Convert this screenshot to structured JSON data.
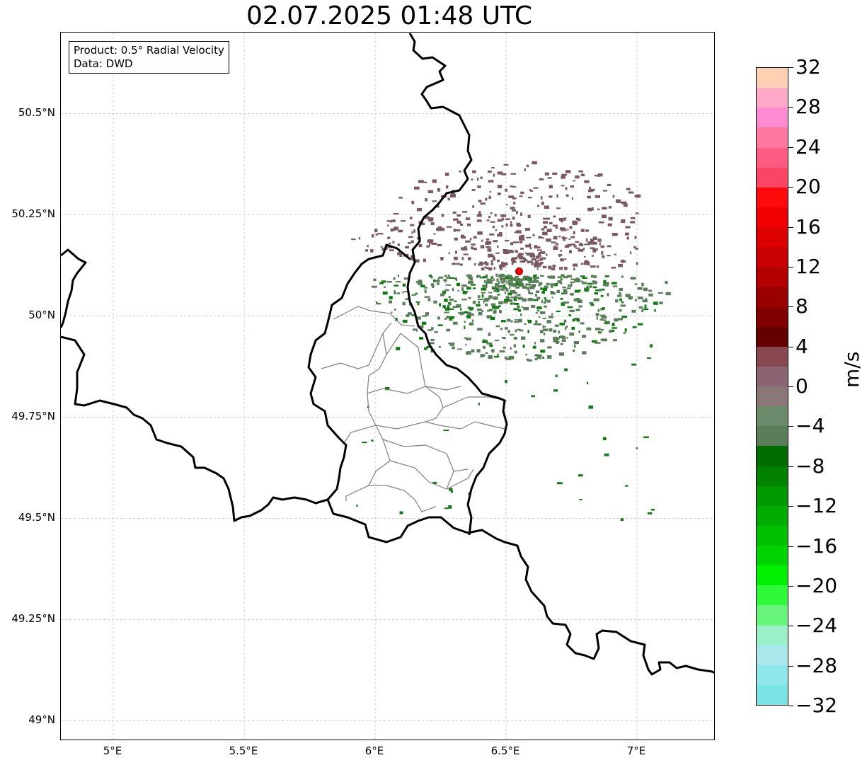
{
  "title": "02.07.2025 01:48 UTC",
  "info": {
    "product": "Product: 0.5° Radial Velocity",
    "source": "Data: DWD"
  },
  "map": {
    "lon_range": [
      4.8,
      7.3
    ],
    "lat_range": [
      48.95,
      50.7
    ],
    "lat_ticks": [
      {
        "value": 50.5,
        "label": "50.5°N"
      },
      {
        "value": 50.25,
        "label": "50.25°N"
      },
      {
        "value": 50.0,
        "label": "50°N"
      },
      {
        "value": 49.75,
        "label": "49.75°N"
      },
      {
        "value": 49.5,
        "label": "49.5°N"
      },
      {
        "value": 49.25,
        "label": "49.25°N"
      },
      {
        "value": 49.0,
        "label": "49°N"
      }
    ],
    "lon_ticks": [
      {
        "value": 5.0,
        "label": "5°E"
      },
      {
        "value": 5.5,
        "label": "5.5°E"
      },
      {
        "value": 6.0,
        "label": "6°E"
      },
      {
        "value": 6.5,
        "label": "6.5°E"
      },
      {
        "value": 7.0,
        "label": "7°E"
      }
    ],
    "radar_site": {
      "lon": 6.55,
      "lat": 50.11
    },
    "colors": {
      "border": "#000000",
      "admin_border": "#808080",
      "grid": "#b0b0b0",
      "radar_marker": "#ff0000",
      "outbound_echo": "#7a5a62",
      "inbound_echo": "#5a7e5a",
      "inbound_strong": "#137a13"
    }
  },
  "colorbar": {
    "unit": "m/s",
    "min": -32,
    "max": 32,
    "ticks": [
      {
        "value": 32,
        "label": "32"
      },
      {
        "value": 28,
        "label": "28"
      },
      {
        "value": 24,
        "label": "24"
      },
      {
        "value": 20,
        "label": "20"
      },
      {
        "value": 16,
        "label": "16"
      },
      {
        "value": 12,
        "label": "12"
      },
      {
        "value": 8,
        "label": "8"
      },
      {
        "value": 4,
        "label": "4"
      },
      {
        "value": 0,
        "label": "0"
      },
      {
        "value": -4,
        "label": "−4"
      },
      {
        "value": -8,
        "label": "−8"
      },
      {
        "value": -12,
        "label": "−12"
      },
      {
        "value": -16,
        "label": "−16"
      },
      {
        "value": -20,
        "label": "−20"
      },
      {
        "value": -24,
        "label": "−24"
      },
      {
        "value": -28,
        "label": "−28"
      },
      {
        "value": -32,
        "label": "−32"
      }
    ],
    "colors": [
      "#7ae4e4",
      "#8ee8ea",
      "#aae8ee",
      "#9af0c8",
      "#66f47a",
      "#2efa3a",
      "#00f000",
      "#00d400",
      "#00c000",
      "#00ac00",
      "#009a00",
      "#008200",
      "#006c00",
      "#5a7e5a",
      "#6a8a6a",
      "#8a7878",
      "#8a6472",
      "#884850",
      "#640000",
      "#800000",
      "#9a0000",
      "#b40000",
      "#c80000",
      "#dc0000",
      "#f00000",
      "#ff0a0a",
      "#fa4664",
      "#ff5a82",
      "#ff78a0",
      "#ff8cd2",
      "#ffa8c8",
      "#ffd0b4"
    ]
  }
}
